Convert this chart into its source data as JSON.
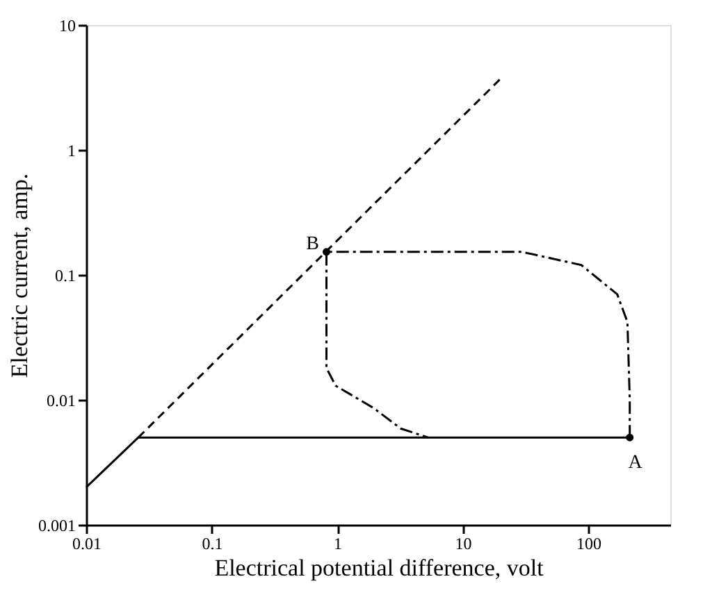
{
  "chart_data": {
    "type": "line",
    "xlabel": "Electrical potential difference, volt",
    "ylabel": "Electric current, amp.",
    "log": "xy",
    "xlim": [
      0.01,
      450
    ],
    "xticks": [
      0.01,
      0.1,
      1,
      10,
      100
    ],
    "ylim": [
      0.001,
      10
    ],
    "yticks": [
      0.001,
      0.01,
      0.1,
      1,
      10
    ],
    "series": [
      {
        "color": "#000000",
        "line_style": "solid",
        "marker": "none",
        "x": [
          0.01,
          0.026,
          214
        ],
        "values": [
          0.002,
          0.005,
          0.005
        ]
      },
      {
        "color": "#000000",
        "line_style": "dashed",
        "marker": "none",
        "x": [
          0.026,
          21
        ],
        "values": [
          0.005,
          3.9
        ]
      },
      {
        "color": "#000000",
        "line_style": "dashdot",
        "marker": "none",
        "x": [
          214,
          214,
          205,
          170,
          88,
          29.5,
          0.82,
          0.82,
          0.97,
          1.95,
          3.2,
          5.3
        ],
        "values": [
          0.005,
          0.01,
          0.042,
          0.07,
          0.12,
          0.153,
          0.153,
          0.018,
          0.013,
          0.0086,
          0.0059,
          0.005
        ]
      },
      {
        "type": "scatter",
        "color": "#000000",
        "marker": "circle",
        "x": [
          214,
          0.82
        ],
        "values": [
          0.005,
          0.153
        ]
      }
    ],
    "annotations": [
      {
        "text": "A",
        "x": 214,
        "y": 0.005
      },
      {
        "text": "B",
        "x": 0.82,
        "y": 0.153
      }
    ]
  }
}
